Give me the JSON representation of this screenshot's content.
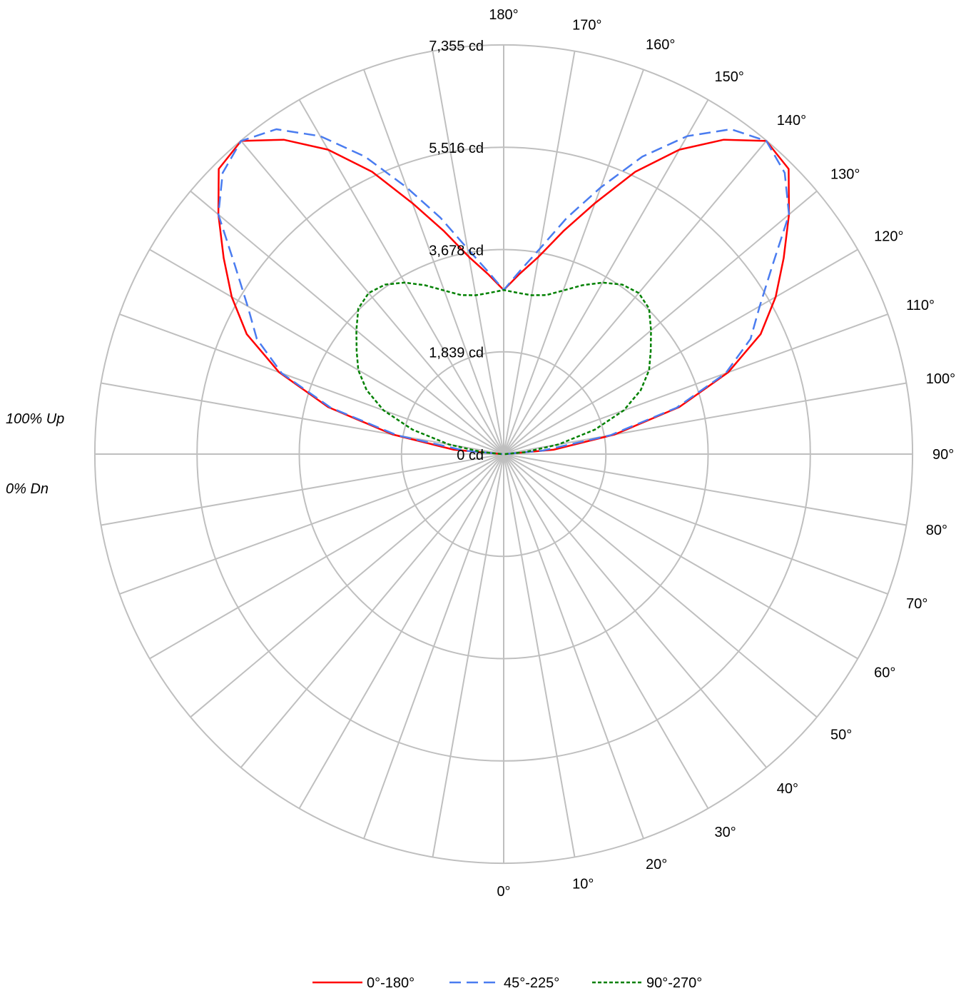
{
  "chart_data": {
    "type": "polar",
    "title": "",
    "units": "cd",
    "radial_ticks": [
      "0 cd",
      "1,839 cd",
      "3,678 cd",
      "5,516 cd",
      "7,355 cd"
    ],
    "radial_max": 7355,
    "radial_step": 1839,
    "angular_ticks_deg": [
      0,
      10,
      20,
      30,
      40,
      50,
      60,
      70,
      80,
      90,
      100,
      110,
      120,
      130,
      140,
      150,
      160,
      170,
      180
    ],
    "angular_labels": [
      "0°",
      "10°",
      "20°",
      "30°",
      "40°",
      "50°",
      "60°",
      "70°",
      "80°",
      "90°",
      "100°",
      "110°",
      "120°",
      "130°",
      "140°",
      "150°",
      "160°",
      "170°",
      "180°"
    ],
    "grid": true,
    "legend_position": "bottom",
    "annotations": {
      "up": "100% Up",
      "down": "0% Dn"
    },
    "angles_deg": [
      90,
      95,
      100,
      105,
      110,
      115,
      120,
      125,
      130,
      135,
      140,
      145,
      150,
      155,
      160,
      165,
      170,
      175,
      180
    ],
    "series": [
      {
        "name": "0°-180°",
        "color": "#ff0000",
        "dash": "solid",
        "values": [
          30,
          900,
          2030,
          3270,
          4300,
          5100,
          5650,
          6150,
          6700,
          7250,
          7350,
          6900,
          6320,
          5600,
          4800,
          4150,
          3600,
          3250,
          2950
        ]
      },
      {
        "name": "45°-225°",
        "color": "#4a7cf0",
        "dash": "long-dash",
        "values": [
          25,
          700,
          1950,
          3220,
          4250,
          4900,
          5320,
          5900,
          6700,
          7150,
          7350,
          7130,
          6600,
          5900,
          5100,
          4400,
          3750,
          3300,
          2950
        ]
      },
      {
        "name": "90°-270°",
        "color": "#008000",
        "dash": "dotted",
        "values": [
          20,
          380,
          1000,
          1700,
          2300,
          2720,
          3020,
          3230,
          3460,
          3700,
          3780,
          3720,
          3560,
          3350,
          3130,
          2960,
          2900,
          2910,
          2950
        ]
      }
    ]
  }
}
